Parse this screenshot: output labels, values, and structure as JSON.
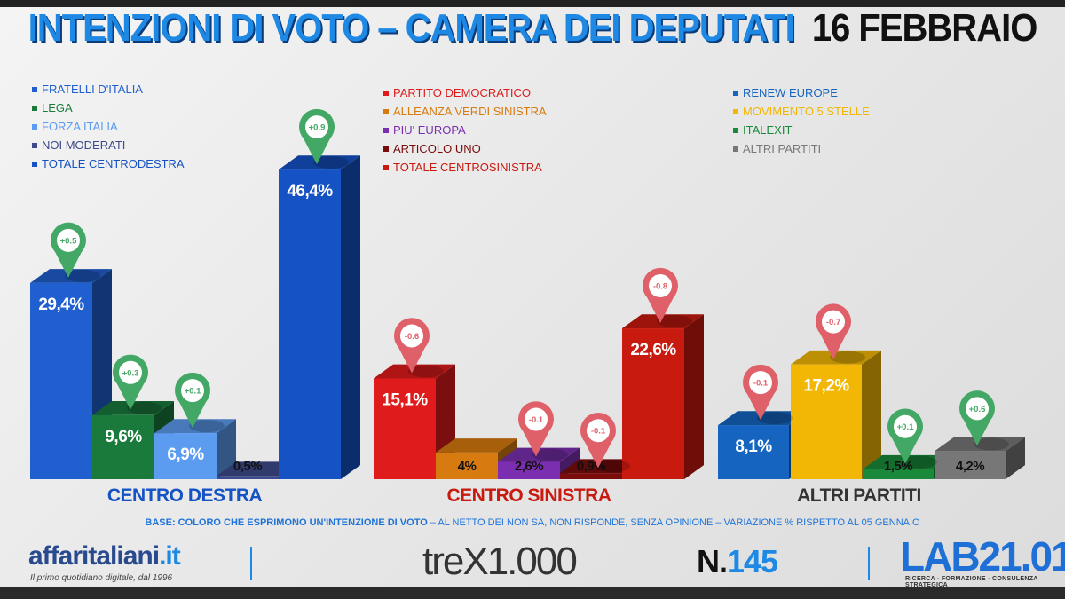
{
  "header": {
    "title_main": "INTENZIONI DI VOTO – CAMERA DEI DEPUTATI",
    "title_date": "16 FEBBRAIO"
  },
  "legends": [
    {
      "items": [
        {
          "label": "FRATELLI D'ITALIA",
          "color": "#1f5fd0"
        },
        {
          "label": "LEGA",
          "color": "#1a7a3c"
        },
        {
          "label": "FORZA ITALIA",
          "color": "#5b9bf0"
        },
        {
          "label": "NOI MODERATI",
          "color": "#3d4a8c"
        },
        {
          "label": "TOTALE CENTRODESTRA",
          "color": "#1552c4"
        }
      ]
    },
    {
      "items": [
        {
          "label": "PARTITO DEMOCRATICO",
          "color": "#e01b1b"
        },
        {
          "label": "ALLEANZA VERDI SINISTRA",
          "color": "#d77a10"
        },
        {
          "label": "PIU' EUROPA",
          "color": "#7b2fb0"
        },
        {
          "label": "ARTICOLO UNO",
          "color": "#7a0c0c"
        },
        {
          "label": "TOTALE CENTROSINISTRA",
          "color": "#c91a0f"
        }
      ]
    },
    {
      "items": [
        {
          "label": "RENEW EUROPE",
          "color": "#1565c0"
        },
        {
          "label": "MOVIMENTO 5 STELLE",
          "color": "#f2b705"
        },
        {
          "label": "ITALEXIT",
          "color": "#1a8a3a"
        },
        {
          "label": "ALTRI PARTITI",
          "color": "#777777"
        }
      ]
    }
  ],
  "chart_data": {
    "type": "bar",
    "unit": "%",
    "groups": [
      {
        "name": "CENTRO DESTRA",
        "name_color": "#1552c4",
        "bars": [
          {
            "party": "FRATELLI D'ITALIA",
            "value": 29.4,
            "label": "29,4%",
            "change": "+0.5",
            "color": "#1f5fd0"
          },
          {
            "party": "LEGA",
            "value": 9.6,
            "label": "9,6%",
            "change": "+0.3",
            "color": "#1a7a3c"
          },
          {
            "party": "FORZA ITALIA",
            "value": 6.9,
            "label": "6,9%",
            "change": "+0.1",
            "color": "#5b9bf0"
          },
          {
            "party": "NOI MODERATI",
            "value": 0.5,
            "label": "0,5%",
            "change": "",
            "color": "#3d4a8c"
          },
          {
            "party": "TOTALE CENTRODESTRA",
            "value": 46.4,
            "label": "46,4%",
            "change": "+0.9",
            "color": "#1552c4"
          }
        ]
      },
      {
        "name": "CENTRO SINISTRA",
        "name_color": "#c91a0f",
        "bars": [
          {
            "party": "PARTITO DEMOCRATICO",
            "value": 15.1,
            "label": "15,1%",
            "change": "-0.6",
            "color": "#e01b1b"
          },
          {
            "party": "ALLEANZA VERDI SINISTRA",
            "value": 4,
            "label": "4%",
            "change": "",
            "color": "#d77a10"
          },
          {
            "party": "PIU' EUROPA",
            "value": 2.6,
            "label": "2,6%",
            "change": "-0.1",
            "color": "#7b2fb0"
          },
          {
            "party": "ARTICOLO UNO",
            "value": 0.9,
            "label": "0,9%",
            "change": "-0.1",
            "color": "#7a0c0c"
          },
          {
            "party": "TOTALE CENTROSINISTRA",
            "value": 22.6,
            "label": "22,6%",
            "change": "-0.8",
            "color": "#c91a0f"
          }
        ]
      },
      {
        "name": "ALTRI PARTITI",
        "name_color": "#333333",
        "bars": [
          {
            "party": "RENEW EUROPE",
            "value": 8.1,
            "label": "8,1%",
            "change": "-0.1",
            "color": "#1565c0"
          },
          {
            "party": "MOVIMENTO 5 STELLE",
            "value": 17.2,
            "label": "17,2%",
            "change": "-0.7",
            "color": "#f2b705"
          },
          {
            "party": "ITALEXIT",
            "value": 1.5,
            "label": "1,5%",
            "change": "+0.1",
            "color": "#1a8a3a"
          },
          {
            "party": "ALTRI PARTITI",
            "value": 4.2,
            "label": "4,2%",
            "change": "+0.6",
            "color": "#777777"
          }
        ]
      }
    ],
    "positive_marker_color": "#43a865",
    "negative_marker_color": "#e0606a"
  },
  "footer": {
    "base_bold": "BASE: COLORO CHE ESPRIMONO UN'INTENZIONE DI VOTO",
    "base_rest": " – AL NETTO DEI NON SA, NON RISPONDE, SENZA OPINIONE – VARIAZIONE % RISPETTO AL 05 GENNAIO",
    "logo1_main": "affaritaliani",
    "logo1_dot": ".it",
    "logo1_sub": "Il primo quotidiano digitale, dal 1996",
    "logo2": "treX1.000",
    "number_prefix": "N.",
    "number": "145",
    "logo3": "LAB21.01",
    "logo3_sub": "RICERCA - FORMAZIONE - CONSULENZA STRATEGICA"
  }
}
